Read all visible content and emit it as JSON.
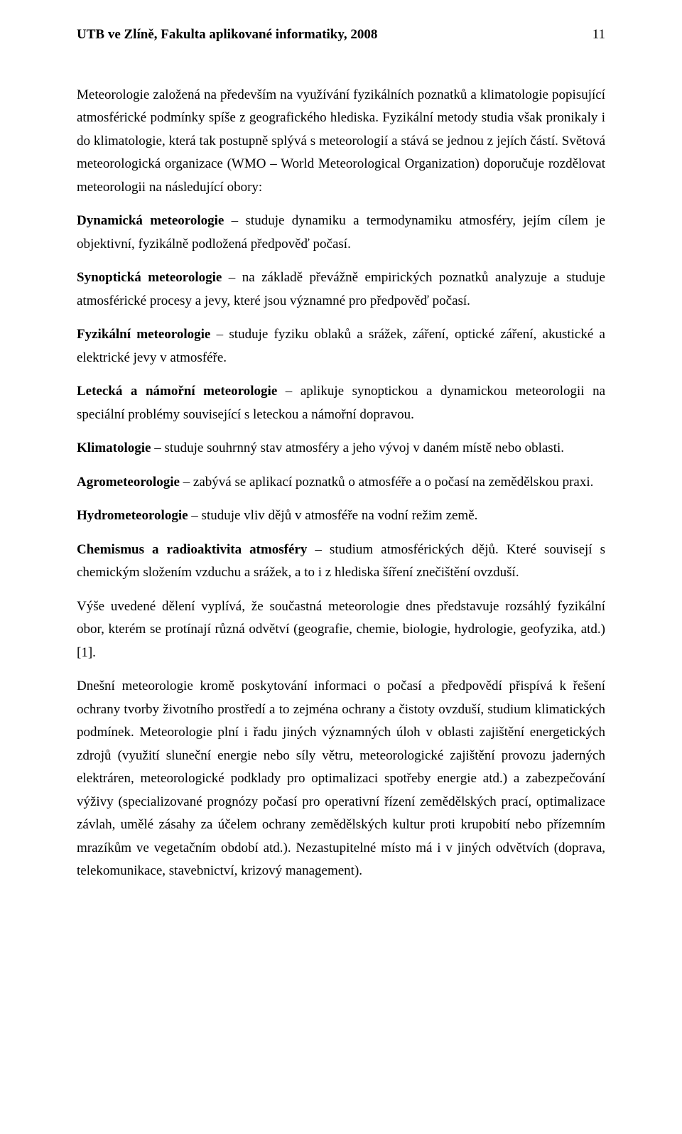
{
  "header": {
    "title": "UTB ve Zlíně, Fakulta aplikované informatiky, 2008",
    "page_number": "11"
  },
  "paragraphs": {
    "p1": "Meteorologie založená na především na využívání fyzikálních poznatků a klimatologie popisující atmosférické podmínky spíše z geografického hlediska. Fyzikální metody studia však pronikaly i do klimatologie, která tak postupně splývá s meteorologií a stává se jednou z jejích částí. Světová meteorologická organizace (WMO – World Meteorological Organization) doporučuje rozdělovat meteorologii na následující obory:",
    "p2_bold": "Dynamická meteorologie",
    "p2_rest": " – studuje dynamiku a termodynamiku atmosféry, jejím cílem je objektivní, fyzikálně podložená předpověď počasí.",
    "p3_bold": "Synoptická meteorologie",
    "p3_rest": " – na základě převážně empirických poznatků analyzuje a studuje atmosférické procesy a jevy, které jsou významné pro předpověď počasí.",
    "p4_bold": "Fyzikální meteorologie",
    "p4_rest": " – studuje fyziku oblaků a srážek, záření, optické záření, akustické a elektrické jevy v atmosféře.",
    "p5_bold": "Letecká a námořní meteorologie",
    "p5_rest": " – aplikuje synoptickou a dynamickou meteorologii na speciální problémy související s leteckou a námořní dopravou.",
    "p6_bold": "Klimatologie",
    "p6_rest": " – studuje souhrnný stav atmosféry a jeho vývoj  v daném místě nebo oblasti.",
    "p7_bold": "Agrometeorologie",
    "p7_rest": " – zabývá se aplikací poznatků o atmosféře a o počasí na zemědělskou praxi.",
    "p8_bold": "Hydrometeorologie",
    "p8_rest": " – studuje vliv dějů v atmosféře na vodní režim země.",
    "p9_bold": "Chemismus a radioaktivita atmosféry",
    "p9_rest": " – studium atmosférických dějů. Které souvisejí s chemickým složením vzduchu a srážek, a to i z hlediska šíření znečištění ovzduší.",
    "p10": "Výše uvedené dělení vyplívá, že součastná meteorologie dnes představuje rozsáhlý fyzikální obor,  kterém se protínají různá odvětví (geografie, chemie, biologie, hydrologie, geofyzika, atd.) [1].",
    "p11": "Dnešní meteorologie kromě poskytování informaci o počasí a předpovědí přispívá k řešení ochrany tvorby životního prostředí a to zejména ochrany a čistoty ovzduší, studium klimatických podmínek. Meteorologie plní i řadu jiných významných úloh v oblasti zajištění energetických zdrojů (využití sluneční energie nebo síly větru, meteorologické zajištění provozu jaderných elektráren, meteorologické podklady pro optimalizaci spotřeby energie atd.) a zabezpečování výživy (specializované prognózy počasí pro operativní řízení zemědělských prací, optimalizace závlah, umělé zásahy za účelem ochrany zemědělských kultur proti krupobití nebo přízemním mrazíkům ve vegetačním období atd.). Nezastupitelné místo má i v jiných odvětvích (doprava, telekomunikace, stavebnictví, krizový management)."
  }
}
